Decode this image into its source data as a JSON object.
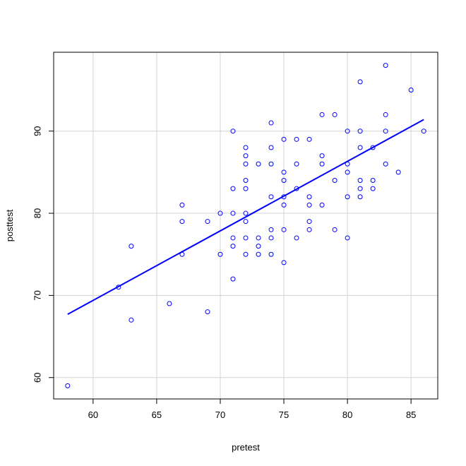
{
  "chart_data": {
    "type": "scatter",
    "xlabel": "pretest",
    "ylabel": "posttest",
    "xlim": [
      56.9,
      87.1
    ],
    "ylim": [
      57.4,
      99.6
    ],
    "x_ticks": [
      60,
      65,
      70,
      75,
      80,
      85
    ],
    "y_ticks": [
      60,
      70,
      80,
      90
    ],
    "grid": true,
    "point_color": "#0000ff",
    "line_color": "#0000ff",
    "points": [
      [
        58,
        59
      ],
      [
        62,
        71
      ],
      [
        63,
        76
      ],
      [
        63,
        67
      ],
      [
        66,
        69
      ],
      [
        67,
        81
      ],
      [
        67,
        79
      ],
      [
        67,
        75
      ],
      [
        69,
        79
      ],
      [
        69,
        68
      ],
      [
        70,
        80
      ],
      [
        70,
        75
      ],
      [
        71,
        90
      ],
      [
        71,
        83
      ],
      [
        71,
        80
      ],
      [
        71,
        77
      ],
      [
        71,
        76
      ],
      [
        71,
        72
      ],
      [
        72,
        88
      ],
      [
        72,
        87
      ],
      [
        72,
        86
      ],
      [
        72,
        84
      ],
      [
        72,
        83
      ],
      [
        72,
        80
      ],
      [
        72,
        79
      ],
      [
        72,
        77
      ],
      [
        72,
        75
      ],
      [
        73,
        86
      ],
      [
        73,
        77
      ],
      [
        73,
        76
      ],
      [
        73,
        75
      ],
      [
        74,
        91
      ],
      [
        74,
        88
      ],
      [
        74,
        86
      ],
      [
        74,
        82
      ],
      [
        74,
        78
      ],
      [
        74,
        77
      ],
      [
        74,
        75
      ],
      [
        75,
        89
      ],
      [
        75,
        85
      ],
      [
        75,
        84
      ],
      [
        75,
        82
      ],
      [
        75,
        81
      ],
      [
        75,
        78
      ],
      [
        75,
        74
      ],
      [
        76,
        89
      ],
      [
        76,
        86
      ],
      [
        76,
        83
      ],
      [
        76,
        77
      ],
      [
        77,
        89
      ],
      [
        77,
        82
      ],
      [
        77,
        81
      ],
      [
        77,
        79
      ],
      [
        77,
        78
      ],
      [
        78,
        92
      ],
      [
        78,
        87
      ],
      [
        78,
        86
      ],
      [
        78,
        81
      ],
      [
        79,
        92
      ],
      [
        79,
        84
      ],
      [
        79,
        78
      ],
      [
        80,
        90
      ],
      [
        80,
        86
      ],
      [
        80,
        85
      ],
      [
        80,
        82
      ],
      [
        80,
        77
      ],
      [
        81,
        96
      ],
      [
        81,
        90
      ],
      [
        81,
        88
      ],
      [
        81,
        84
      ],
      [
        81,
        83
      ],
      [
        81,
        82
      ],
      [
        82,
        88
      ],
      [
        82,
        84
      ],
      [
        82,
        83
      ],
      [
        83,
        98
      ],
      [
        83,
        92
      ],
      [
        83,
        90
      ],
      [
        83,
        86
      ],
      [
        84,
        85
      ],
      [
        85,
        95
      ],
      [
        86,
        90
      ]
    ],
    "regression_line": {
      "x": [
        58,
        86
      ],
      "y": [
        67.7,
        91.4
      ]
    }
  }
}
